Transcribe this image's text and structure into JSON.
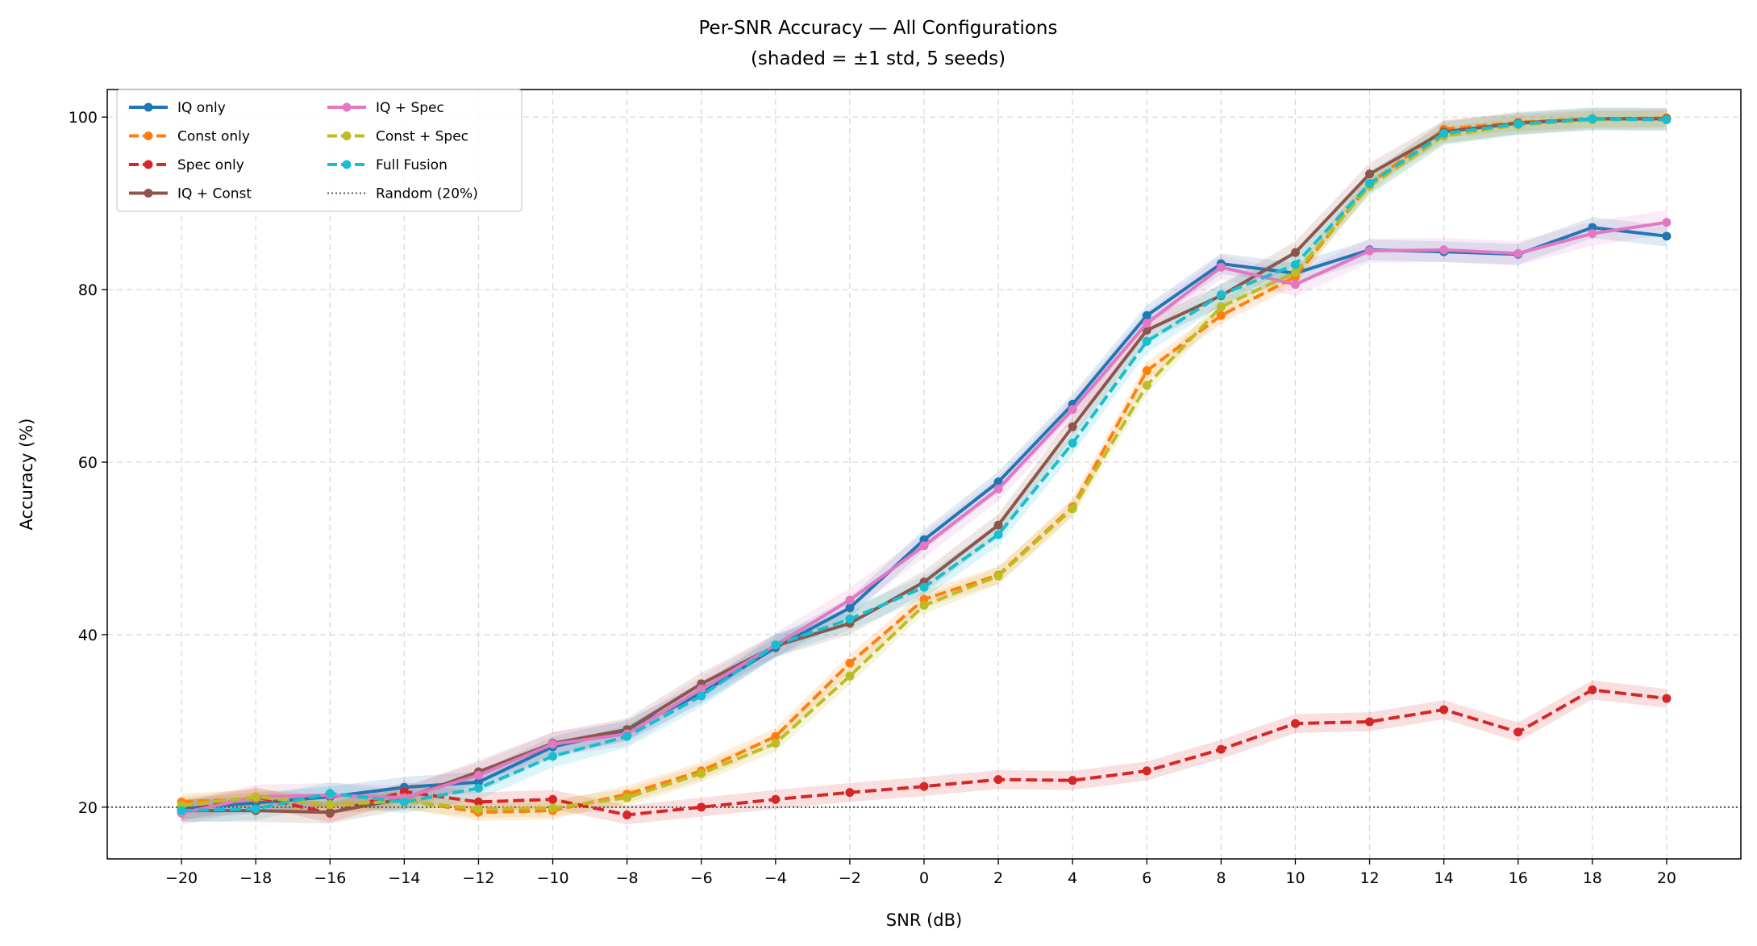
{
  "chart_data": {
    "type": "line",
    "title": "Per-SNR Accuracy — All Configurations",
    "subtitle": "(shaded = ±1 std, 5 seeds)",
    "xlabel": "SNR (dB)",
    "ylabel": "Accuracy (%)",
    "xlim": [
      -22,
      22
    ],
    "ylim": [
      14,
      103.2
    ],
    "grid": true,
    "legend_position": "top-left",
    "x": [
      -20,
      -18,
      -16,
      -14,
      -12,
      -10,
      -8,
      -6,
      -4,
      -2,
      0,
      2,
      4,
      6,
      8,
      10,
      12,
      14,
      16,
      18,
      20
    ],
    "x_tick_labels": [
      "−20",
      "−18",
      "−16",
      "−14",
      "−12",
      "−10",
      "−8",
      "−6",
      "−4",
      "−2",
      "0",
      "2",
      "4",
      "6",
      "8",
      "10",
      "12",
      "14",
      "16",
      "18",
      "20"
    ],
    "y_ticks": [
      20,
      40,
      60,
      80,
      100
    ],
    "y_tick_labels": [
      "20",
      "40",
      "60",
      "80",
      "100"
    ],
    "series": [
      {
        "name": "IQ only",
        "color": "#1f77b4",
        "style": "solid",
        "std": 1.2,
        "values": [
          19.8,
          20.5,
          21.2,
          22.3,
          22.9,
          27.0,
          28.9,
          33.2,
          38.5,
          43.1,
          51.0,
          57.7,
          66.7,
          77.0,
          83.0,
          81.9,
          84.6,
          84.4,
          84.1,
          87.2,
          86.2
        ]
      },
      {
        "name": "Const only",
        "color": "#ff7f0e",
        "style": "dashed",
        "std": 1.0,
        "values": [
          20.6,
          21.0,
          20.3,
          20.8,
          19.4,
          19.6,
          21.5,
          24.2,
          28.2,
          36.7,
          44.1,
          46.9,
          54.8,
          70.6,
          77.0,
          81.5,
          92.3,
          98.6,
          99.4,
          99.8,
          99.9
        ]
      },
      {
        "name": "Spec only",
        "color": "#d62728",
        "style": "dashed",
        "std": 1.1,
        "values": [
          19.5,
          21.2,
          19.3,
          21.8,
          20.6,
          20.9,
          19.1,
          20.0,
          20.9,
          21.7,
          22.4,
          23.2,
          23.1,
          24.2,
          26.7,
          29.7,
          29.9,
          31.3,
          28.7,
          33.6,
          32.6
        ]
      },
      {
        "name": "IQ + Const",
        "color": "#8c564b",
        "style": "solid",
        "std": 1.3,
        "values": [
          19.6,
          19.6,
          19.4,
          21.0,
          24.1,
          27.4,
          29.0,
          34.3,
          38.7,
          41.3,
          46.1,
          52.7,
          64.1,
          75.3,
          79.3,
          84.3,
          93.4,
          98.3,
          99.3,
          99.8,
          99.8
        ]
      },
      {
        "name": "IQ + Spec",
        "color": "#e377c2",
        "style": "solid",
        "std": 1.4,
        "values": [
          19.3,
          21.2,
          21.4,
          21.1,
          23.7,
          27.3,
          28.5,
          33.7,
          38.8,
          44.0,
          50.3,
          56.9,
          66.1,
          76.1,
          82.6,
          80.6,
          84.5,
          84.6,
          84.2,
          86.5,
          87.8
        ]
      },
      {
        "name": "Const + Spec",
        "color": "#bcbd22",
        "style": "dashed",
        "std": 1.0,
        "values": [
          20.2,
          21.2,
          20.3,
          20.7,
          19.8,
          19.9,
          21.1,
          23.9,
          27.4,
          35.2,
          43.4,
          46.8,
          54.6,
          68.9,
          78.0,
          82.0,
          92.0,
          97.8,
          99.1,
          99.7,
          99.7
        ]
      },
      {
        "name": "Full Fusion",
        "color": "#17becf",
        "style": "dashed",
        "std": 1.3,
        "values": [
          19.6,
          19.8,
          21.6,
          20.6,
          22.2,
          25.9,
          28.2,
          32.9,
          38.8,
          41.8,
          45.5,
          51.6,
          62.2,
          74.0,
          79.4,
          82.9,
          92.3,
          98.1,
          99.2,
          99.8,
          99.7
        ]
      }
    ],
    "reference_line": {
      "name": "Random (20%)",
      "value": 20,
      "color": "#555555",
      "style": "dotted"
    }
  }
}
